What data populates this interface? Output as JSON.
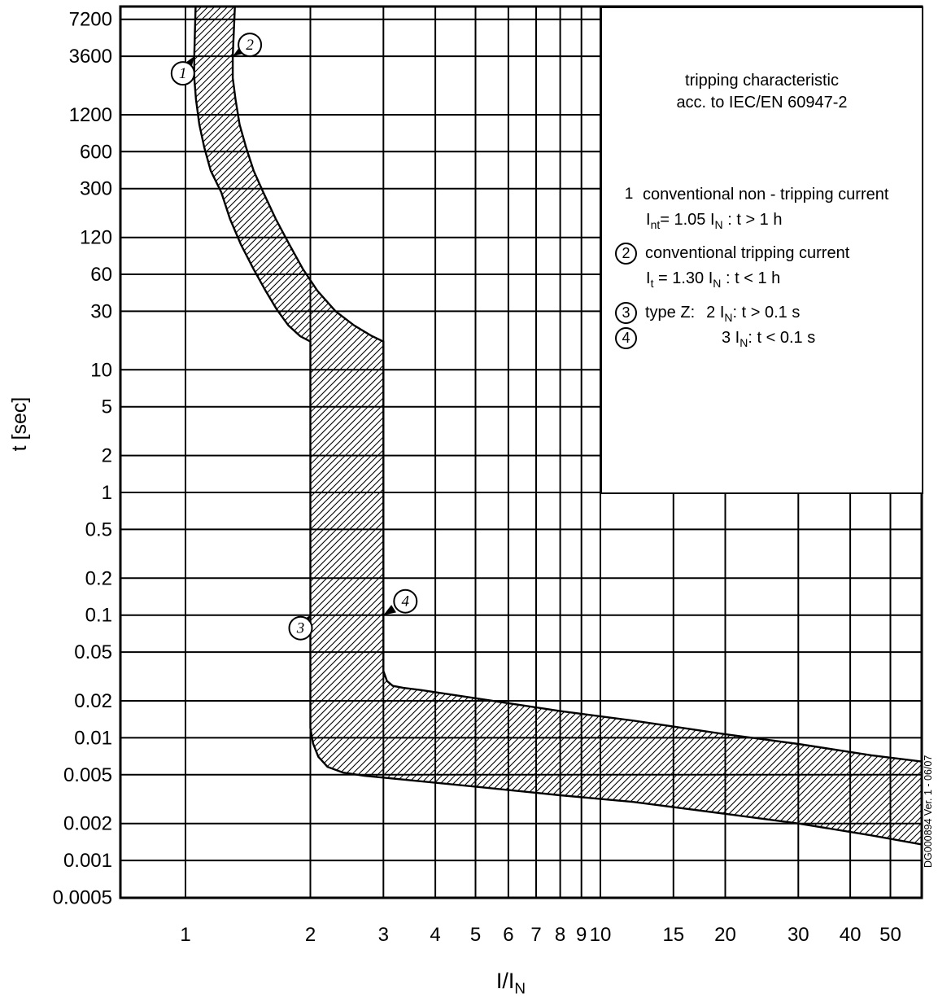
{
  "figure": {
    "y_title": "t [sec]",
    "x_title": "I/I_{N}",
    "watermark": "DG000894 Ver. 1 - 06/07"
  },
  "legend": {
    "title_line1": "tripping characteristic",
    "title_line2": "acc. to IEC/EN 60947-2",
    "items": [
      {
        "num": "1",
        "circled": false,
        "text1": "conventional non - tripping current",
        "text2": "I_{nt}= 1.05 I_{N} : t > 1 h"
      },
      {
        "num": "2",
        "circled": true,
        "text1": "conventional tripping current",
        "text2": "I_{t} = 1.30 I_{N} : t < 1 h"
      },
      {
        "num": "3",
        "circled": true,
        "prefix": "type Z:",
        "text1": "2 I_{N}: t > 0.1 s"
      },
      {
        "num": "4",
        "circled": true,
        "text1": "3 I_{N}: t < 0.1 s"
      }
    ]
  },
  "chart_data": {
    "type": "area",
    "title": "tripping characteristic acc. to IEC/EN 60947-2",
    "x_axis": {
      "label": "I/I_N",
      "scale": "log",
      "range": [
        0.7,
        60
      ],
      "ticks": [
        "1",
        "2",
        "3",
        "4",
        "5",
        "6",
        "7",
        "8",
        "9",
        "10",
        "15",
        "20",
        "30",
        "40",
        "50"
      ]
    },
    "y_axis": {
      "label": "t [sec]",
      "scale": "log",
      "range": [
        0.0005,
        9000
      ],
      "ticks": [
        "7200",
        "3600",
        "1200",
        "600",
        "300",
        "120",
        "60",
        "30",
        "10",
        "5",
        "2",
        "1",
        "0.5",
        "0.2",
        "0.1",
        "0.05",
        "0.02",
        "0.01",
        "0.005",
        "0.002",
        "0.001",
        "0.0005"
      ]
    },
    "grid": true,
    "band": {
      "lower_curve": [
        [
          1.06,
          12000
        ],
        [
          1.05,
          3600
        ],
        [
          1.05,
          2400
        ],
        [
          1.06,
          1600
        ],
        [
          1.08,
          1000
        ],
        [
          1.11,
          650
        ],
        [
          1.15,
          420
        ],
        [
          1.22,
          280
        ],
        [
          1.28,
          170
        ],
        [
          1.36,
          105
        ],
        [
          1.46,
          66
        ],
        [
          1.56,
          44
        ],
        [
          1.66,
          31
        ],
        [
          1.77,
          23
        ],
        [
          1.89,
          18.8
        ],
        [
          2.0,
          17
        ],
        [
          2.0,
          0.1
        ],
        [
          2.0,
          0.012
        ],
        [
          2.03,
          0.009
        ],
        [
          2.09,
          0.007
        ],
        [
          2.2,
          0.0058
        ],
        [
          2.4,
          0.0052
        ],
        [
          2.7,
          0.0049
        ],
        [
          3.5,
          0.0045
        ],
        [
          5,
          0.004
        ],
        [
          8,
          0.0034
        ],
        [
          12,
          0.003
        ],
        [
          20,
          0.0024
        ],
        [
          30,
          0.002
        ],
        [
          45,
          0.0016
        ],
        [
          59.5,
          0.00135
        ]
      ],
      "upper_curve": [
        [
          1.32,
          12000
        ],
        [
          1.3,
          3600
        ],
        [
          1.3,
          2400
        ],
        [
          1.32,
          1600
        ],
        [
          1.35,
          1000
        ],
        [
          1.4,
          650
        ],
        [
          1.46,
          420
        ],
        [
          1.54,
          280
        ],
        [
          1.65,
          170
        ],
        [
          1.78,
          105
        ],
        [
          1.92,
          66
        ],
        [
          2.08,
          44
        ],
        [
          2.3,
          30
        ],
        [
          2.55,
          23
        ],
        [
          2.8,
          19
        ],
        [
          3.0,
          17
        ],
        [
          3.0,
          0.1
        ],
        [
          3.0,
          0.035
        ],
        [
          3.06,
          0.029
        ],
        [
          3.16,
          0.0265
        ],
        [
          3.35,
          0.0255
        ],
        [
          3.7,
          0.0245
        ],
        [
          5,
          0.021
        ],
        [
          8,
          0.0165
        ],
        [
          12,
          0.0138
        ],
        [
          20,
          0.0107
        ],
        [
          30,
          0.0089
        ],
        [
          45,
          0.0072
        ],
        [
          59.5,
          0.0064
        ]
      ]
    },
    "markers": [
      {
        "label": "1",
        "x": 1.05,
        "t": 3600
      },
      {
        "label": "2",
        "x": 1.3,
        "t": 3600
      },
      {
        "label": "3",
        "x": 2.0,
        "t": 0.1
      },
      {
        "label": "4",
        "x": 3.0,
        "t": 0.1
      }
    ]
  }
}
